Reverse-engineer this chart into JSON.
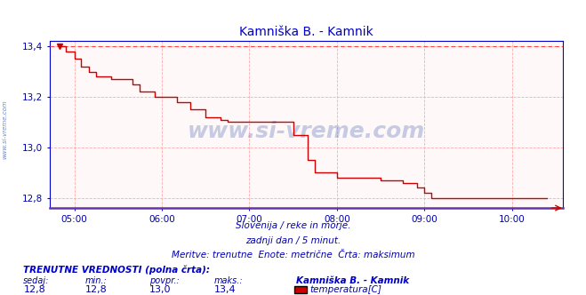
{
  "title": "Kamniška B. - Kamnik",
  "title_color": "#0000cc",
  "bg_color": "#ffffff",
  "plot_bg_color": "#fff8f8",
  "grid_color": "#ffaaaa",
  "line_color": "#cc0000",
  "max_line_color": "#ff4444",
  "axis_color": "#0000cc",
  "tick_color": "#0000aa",
  "watermark": "www.si-vreme.com",
  "watermark_color": "#3355aa",
  "side_label": "www.si-vreme.com",
  "subtitle1": "Slovenija / reke in morje.",
  "subtitle2": "zadnji dan / 5 minut.",
  "subtitle3": "Meritve: trenutne  Enote: metrične  Črta: maksimum",
  "footer_title": "TRENUTNE VREDNOSTI (polna črta):",
  "footer_labels": [
    "sedaj:",
    "min.:",
    "povpr.:",
    "maks.:"
  ],
  "footer_values": [
    "12,8",
    "12,8",
    "13,0",
    "13,4"
  ],
  "footer_station": "Kamniška B. - Kamnik",
  "footer_series": "temperatura[C]",
  "legend_color": "#cc0000",
  "ylim": [
    12.76,
    13.42
  ],
  "yticks": [
    12.8,
    13.0,
    13.2,
    13.4
  ],
  "xlim_start": 4.72,
  "xlim_end": 10.58,
  "xticks": [
    5,
    6,
    7,
    8,
    9,
    10
  ],
  "xtick_labels": [
    "05:00",
    "06:00",
    "07:00",
    "08:00",
    "09:00",
    "10:00"
  ],
  "max_value": 13.4,
  "data_x": [
    4.833,
    4.9,
    5.0,
    5.08,
    5.17,
    5.25,
    5.42,
    5.58,
    5.67,
    5.75,
    5.83,
    5.92,
    6.08,
    6.17,
    6.33,
    6.5,
    6.58,
    6.67,
    6.75,
    7.08,
    7.42,
    7.5,
    7.67,
    7.75,
    8.0,
    8.08,
    8.5,
    8.75,
    8.92,
    9.0,
    9.08,
    10.4
  ],
  "data_y": [
    13.4,
    13.38,
    13.35,
    13.32,
    13.3,
    13.28,
    13.27,
    13.27,
    13.25,
    13.22,
    13.22,
    13.2,
    13.2,
    13.18,
    13.15,
    13.12,
    13.12,
    13.11,
    13.1,
    13.1,
    13.1,
    13.05,
    12.95,
    12.9,
    12.88,
    12.88,
    12.87,
    12.86,
    12.84,
    12.82,
    12.8,
    12.8
  ]
}
